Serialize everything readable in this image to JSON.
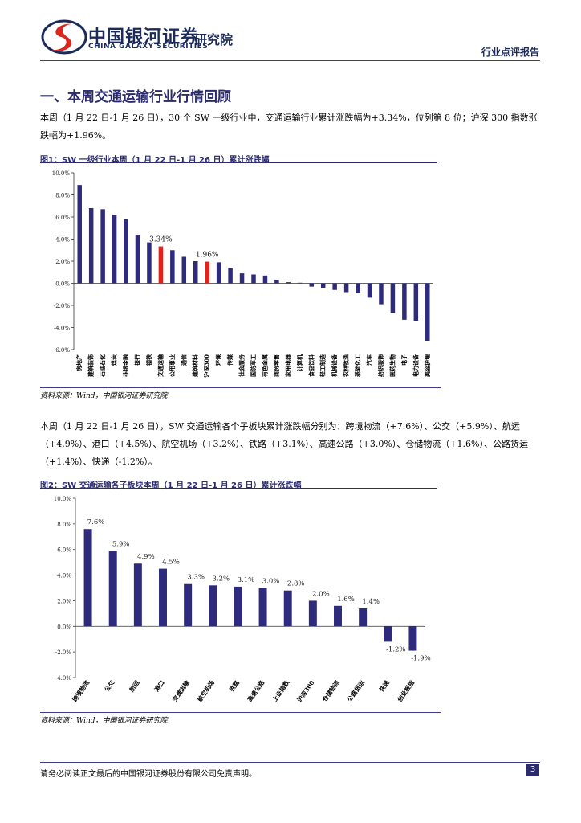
{
  "header": {
    "brand_cn": "中国银河证券",
    "brand_en": "CHINA GALAXY SECURITIES",
    "institute": "研究院",
    "report_type": "行业点评报告"
  },
  "section": {
    "title": "一、本周交通运输行业行情回顾"
  },
  "paragraphs": {
    "p1": "本周（1 月 22 日-1 月 26 日），30 个 SW 一级行业中，交通运输行业累计涨跌幅为+3.34%，位列第 8 位；沪深 300 指数涨跌幅为+1.96%。",
    "p2": "本周（1 月 22 日-1 月 26 日），SW 交通运输各个子板块累计涨跌幅分别为：跨境物流（+7.6%）、公交（+5.9%）、航运（+4.9%）、港口（+4.5%）、航空机场（+3.2%）、铁路（+3.1%）、高速公路（+3.0%）、仓储物流（+1.6%）、公路货运（+1.4%）、快递（-1.2%）。"
  },
  "figures": {
    "fig1_title": "图1：SW 一级行业本周（1 月 22 日-1 月 26 日）累计涨跌幅",
    "fig1_source": "资料来源：Wind，中国银河证券研究院",
    "fig2_title": "图2：SW 交通运输各子板块本周（1 月 22 日-1 月 26 日）累计涨跌幅",
    "fig2_source": "资料来源：Wind，中国银河证券研究院"
  },
  "footer": {
    "disclaimer": "请务必阅读正文最后的中国银河证券股份有限公司免责声明。",
    "page": "3"
  },
  "colors": {
    "bar": "#2e2a7c",
    "highlight": "#e0231b",
    "navy": "#1b2a5b",
    "logo_red": "#d7281f"
  },
  "chart_data": [
    {
      "type": "bar",
      "categories": [
        "房地产",
        "建筑装饰",
        "石油石化",
        "煤炭",
        "非银金融",
        "银行",
        "钢铁",
        "交通运输",
        "公用事业",
        "通信",
        "建筑材料",
        "沪深300",
        "环保",
        "传媒",
        "社会服务",
        "国防军工",
        "有色金属",
        "商贸零售",
        "家用电器",
        "计算机",
        "食品饮料",
        "轻工制造",
        "机械设备",
        "农林牧渔",
        "基础化工",
        "汽车",
        "纺织服饰",
        "医药生物",
        "电子",
        "电力设备",
        "美容护理"
      ],
      "values": [
        8.9,
        6.8,
        6.7,
        6.2,
        5.8,
        4.4,
        3.7,
        3.34,
        3.0,
        2.4,
        2.0,
        1.96,
        1.9,
        1.4,
        0.9,
        0.8,
        0.7,
        0.3,
        0.1,
        0.05,
        -0.3,
        -0.4,
        -0.6,
        -0.8,
        -0.9,
        -1.3,
        -1.9,
        -2.7,
        -3.3,
        -3.4,
        -5.2
      ],
      "highlight_categories": [
        "交通运输",
        "沪深300"
      ],
      "data_labels": [
        {
          "category": "交通运输",
          "text": "3.34%"
        },
        {
          "category": "沪深300",
          "text": "1.96%"
        }
      ],
      "yticks": [
        "10.0%",
        "8.0%",
        "6.0%",
        "4.0%",
        "2.0%",
        "0.0%",
        "-2.0%",
        "-4.0%",
        "-6.0%"
      ],
      "ylim": [
        -6,
        10
      ],
      "title": "",
      "xlabel": "",
      "ylabel": ""
    },
    {
      "type": "bar",
      "categories": [
        "跨境物流",
        "公交",
        "航运",
        "港口",
        "交通运输",
        "航空机场",
        "铁路",
        "高速公路",
        "上证指数",
        "沪深300",
        "仓储物流",
        "公路货运",
        "快递",
        "创业板指"
      ],
      "values": [
        7.6,
        5.9,
        4.9,
        4.5,
        3.3,
        3.2,
        3.1,
        3.0,
        2.8,
        2.0,
        1.6,
        1.4,
        -1.2,
        -1.9
      ],
      "data_labels": [
        "7.6%",
        "5.9%",
        "4.9%",
        "4.5%",
        "3.3%",
        "3.2%",
        "3.1%",
        "3.0%",
        "2.8%",
        "2.0%",
        "1.6%",
        "1.4%",
        "-1.2%",
        "-1.9%"
      ],
      "yticks": [
        "10.0%",
        "8.0%",
        "6.0%",
        "4.0%",
        "2.0%",
        "0.0%",
        "-2.0%",
        "-4.0%"
      ],
      "ylim": [
        -4,
        10
      ],
      "title": "",
      "xlabel": "",
      "ylabel": ""
    }
  ]
}
